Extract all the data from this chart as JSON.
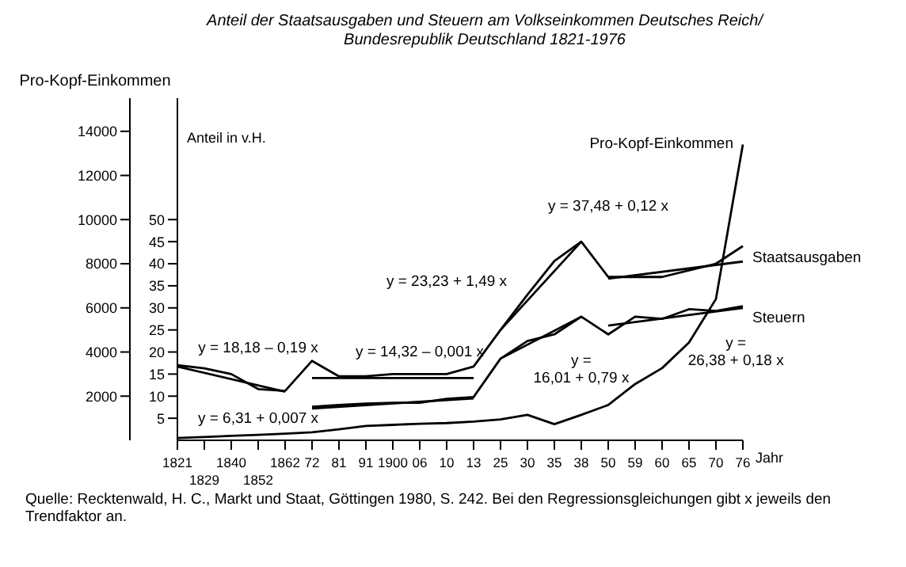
{
  "chart_data": {
    "type": "line",
    "title": "Anteil der Staatsausgaben und Steuern am Volkseinkommen Deutsches Reich/\nBundesrepublik Deutschland 1821-1976",
    "xlabel": "Jahr",
    "ylabel": "Pro-Kopf-Einkommen",
    "y2label": "Anteil in v.H.",
    "categories": [
      "1821",
      "1829",
      "1840",
      "1852",
      "1862",
      "72",
      "81",
      "91",
      "1900",
      "06",
      "10",
      "13",
      "25",
      "30",
      "35",
      "38",
      "50",
      "59",
      "60",
      "65",
      "70",
      "76"
    ],
    "ylim": [
      0,
      15500
    ],
    "yticks": [
      2000,
      4000,
      6000,
      8000,
      10000,
      12000,
      14000
    ],
    "y2lim": [
      0,
      77.5
    ],
    "y2ticks": [
      5,
      10,
      15,
      20,
      25,
      30,
      35,
      40,
      45,
      50
    ],
    "marker": "none",
    "legend": false,
    "series": [
      {
        "name": "Pro-Kopf-Einkommen",
        "color": "#000000",
        "values": [
          100,
          150,
          200,
          250,
          300,
          360,
          500,
          650,
          700,
          750,
          780,
          850,
          950,
          1150,
          730,
          1150,
          1600,
          2550,
          3270,
          4430,
          6400,
          13400
        ]
      },
      {
        "name": "Staatsausgaben",
        "color": "#000000",
        "axis": "y2",
        "values": [
          17,
          16.3,
          15,
          11.6,
          11.2,
          18,
          14.5,
          14.5,
          15,
          15,
          15,
          16.7,
          25,
          33,
          40.6,
          45,
          37,
          37,
          37,
          38.5,
          40,
          44
        ]
      },
      {
        "name": "Steuern",
        "color": "#000000",
        "axis": "y2",
        "values": [
          null,
          null,
          null,
          null,
          null,
          7.6,
          8,
          8.3,
          8.5,
          8.5,
          9.4,
          9.8,
          18.5,
          22.5,
          24,
          28,
          24,
          28,
          27.5,
          29.7,
          29.3,
          30.4
        ]
      },
      {
        "color": "#000000",
        "axis": "y2",
        "values": [
          16.7,
          null,
          null,
          null,
          11,
          null,
          null,
          null,
          null,
          null,
          null,
          null,
          null,
          null,
          null,
          null,
          null,
          null,
          null,
          null,
          null,
          null
        ]
      },
      {
        "color": "#000000",
        "axis": "y2",
        "values": [
          null,
          null,
          null,
          null,
          null,
          14.1,
          null,
          null,
          null,
          null,
          null,
          14.1,
          null,
          null,
          null,
          null,
          null,
          null,
          null,
          null,
          null,
          null
        ]
      },
      {
        "color": "#000000",
        "axis": "y2",
        "values": [
          null,
          null,
          null,
          null,
          null,
          7.2,
          null,
          null,
          null,
          null,
          null,
          9.5,
          null,
          null,
          null,
          null,
          null,
          null,
          null,
          null,
          null,
          null
        ]
      },
      {
        "color": "#000000",
        "axis": "y2",
        "values": [
          null,
          null,
          null,
          null,
          null,
          null,
          null,
          null,
          null,
          null,
          null,
          null,
          25,
          null,
          null,
          45,
          null,
          null,
          null,
          null,
          null,
          null
        ]
      },
      {
        "color": "#000000",
        "axis": "y2",
        "values": [
          null,
          null,
          null,
          null,
          null,
          null,
          null,
          null,
          null,
          null,
          null,
          null,
          18.5,
          null,
          null,
          28,
          null,
          null,
          null,
          null,
          null,
          null
        ]
      },
      {
        "color": "#000000",
        "axis": "y2",
        "values": [
          null,
          null,
          null,
          null,
          null,
          null,
          null,
          null,
          null,
          null,
          null,
          null,
          null,
          null,
          null,
          null,
          36.6,
          null,
          null,
          null,
          null,
          40.5
        ]
      },
      {
        "color": "#000000",
        "axis": "y2",
        "values": [
          null,
          null,
          null,
          null,
          null,
          null,
          null,
          null,
          null,
          null,
          null,
          null,
          null,
          null,
          null,
          null,
          26,
          null,
          null,
          null,
          null,
          30
        ]
      }
    ],
    "annotations": [
      "y = 18,18 – 0,19 x",
      "y = 14,32 – 0,001 x",
      "y = 6,31 + 0,007 x",
      "y = 23,23 + 1,49 x",
      "y =\n16,01 + 0,79 x",
      "y = 37,48 + 0,12 x",
      "y =\n26,38 + 0,18 x",
      "Quelle:  Recktenwald, H. C., Markt und Staat, Göttingen 1980, S. 242. Bei den Regressionsgleichungen gibt x jeweils den Trendfaktor an."
    ]
  }
}
